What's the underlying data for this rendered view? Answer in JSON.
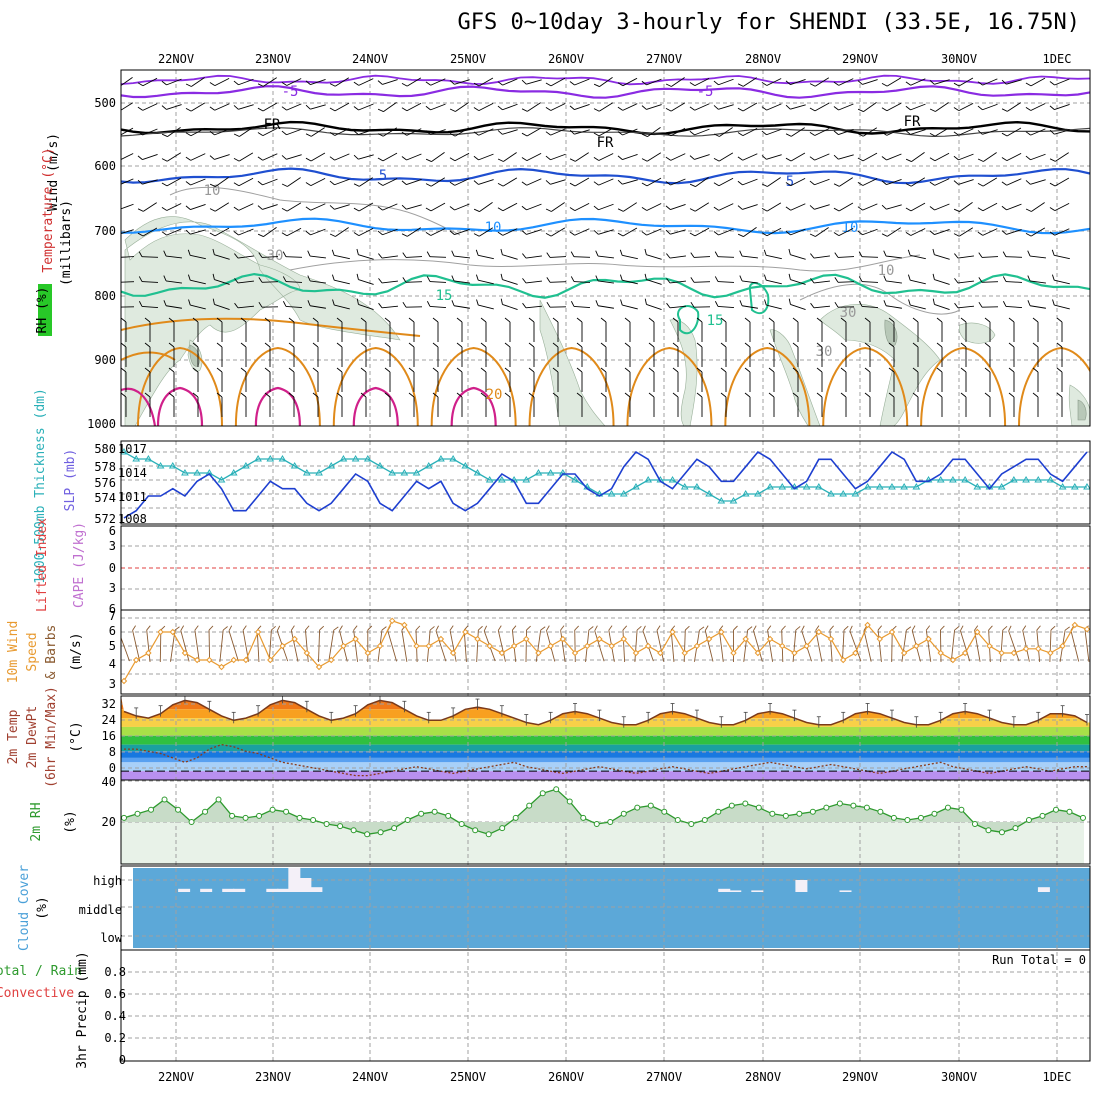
{
  "title": "GFS 0~10day 3-hourly for SHENDI (33.5E, 16.75N)",
  "dates": [
    "22NOV",
    "23NOV",
    "24NOV",
    "25NOV",
    "26NOV",
    "27NOV",
    "28NOV",
    "29NOV",
    "30NOV",
    "1DEC"
  ],
  "panels": {
    "upper": {
      "ylabel_wind": "Wind (m/s)",
      "ylabel_temp": "Temperature (°C)",
      "ylabel_rh": "RH (%)",
      "ylabel_units": "(millibars)",
      "ticks": [
        "500",
        "600",
        "700",
        "800",
        "900",
        "1000"
      ],
      "contour_labels": [
        "-5",
        "-5",
        "FR",
        "FR",
        "FR",
        "5",
        "5",
        "10",
        "10",
        "15",
        "15",
        "20",
        "10",
        "30",
        "10",
        "30",
        "30"
      ]
    },
    "thickness": {
      "ylabel_left": "1000-500mb Thickness (dm)",
      "ylabel_right": "SLP (mb)",
      "left_ticks": [
        "580",
        "578",
        "576",
        "574",
        "572"
      ],
      "right_ticks": [
        "1017",
        "1014",
        "1011",
        "1008"
      ]
    },
    "stability": {
      "ylabel_left": "Lifted Index",
      "ylabel_right": "CAPE (J/kg)",
      "ticks": [
        "6",
        "3",
        "0",
        "3",
        "6"
      ]
    },
    "wind10": {
      "ylabel_1": "10m Wind",
      "ylabel_2": "Speed",
      "ylabel_3": "& Barbs",
      "ylabel_units": "(m/s)",
      "ticks": [
        "7",
        "6",
        "5",
        "4",
        "3"
      ]
    },
    "temp2m": {
      "ylabel_1": "2m Temp",
      "ylabel_2": "2m DewPt",
      "ylabel_3": "(6hr Min/Max)",
      "ylabel_units": "(°C)",
      "ticks": [
        "32",
        "24",
        "16",
        "8",
        "0"
      ]
    },
    "rh2m": {
      "ylabel": "2m RH",
      "ylabel_units": "(%)",
      "ticks": [
        "40",
        "20"
      ]
    },
    "cloud": {
      "ylabel": "Cloud Cover",
      "ylabel_units": "(%)",
      "ticks": [
        "high",
        "middle",
        "low"
      ]
    },
    "precip": {
      "ylabel_1": "Total / Rain",
      "ylabel_2": "Convective",
      "ylabel_3": "3hr Precip (mm)",
      "ticks": [
        "0.8",
        "0.6",
        "0.4",
        "0.2",
        "0"
      ],
      "run_total": "Run Total = 0"
    }
  },
  "colors": {
    "rh_fill": "#dfeadf",
    "temp_neg5": "#8a2be2",
    "temp_fr": "#000000",
    "temp_5": "#1f4fd0",
    "temp_10": "#1e90ff",
    "temp_15": "#20c090",
    "temp_20": "#e08a1a",
    "temp_25": "#d0208a",
    "slp": "#1e3fd0",
    "thickness": "#2ab0b8",
    "wind_speed": "#e89a30",
    "rh2m": "#2e9a2e",
    "cloud_bg": "#5ca8d8",
    "cloud_fill": "#f4f0f8"
  },
  "chart_data": {
    "type": "meteogram",
    "x": [
      "22NOV",
      "23NOV",
      "24NOV",
      "25NOV",
      "26NOV",
      "27NOV",
      "28NOV",
      "29NOV",
      "30NOV",
      "1DEC"
    ],
    "slp_mb": [
      1008,
      1009,
      1011,
      1011,
      1012,
      1011,
      1013,
      1014,
      1012,
      1009,
      1009,
      1011,
      1013,
      1012,
      1012,
      1010,
      1009,
      1010,
      1012,
      1014,
      1013,
      1010,
      1009,
      1011,
      1013,
      1012,
      1013,
      1010,
      1009,
      1010,
      1012,
      1014,
      1013,
      1010,
      1010,
      1012,
      1014,
      1014,
      1012,
      1011,
      1012,
      1015,
      1017,
      1016,
      1013,
      1012,
      1014,
      1016,
      1015,
      1013,
      1013,
      1015,
      1017,
      1016,
      1014,
      1012,
      1013,
      1016,
      1016,
      1014,
      1012,
      1013,
      1015,
      1017,
      1016,
      1013,
      1013,
      1014,
      1016,
      1016,
      1014,
      1012,
      1014,
      1015,
      1016,
      1016,
      1014,
      1013,
      1015,
      1017
    ],
    "thickness_dm": [
      580,
      579,
      579,
      578,
      578,
      577,
      577,
      577,
      576,
      577,
      578,
      579,
      579,
      579,
      578,
      577,
      577,
      578,
      579,
      579,
      579,
      578,
      577,
      577,
      577,
      578,
      579,
      579,
      578,
      577,
      576,
      576,
      576,
      576,
      577,
      577,
      577,
      576,
      575,
      574,
      574,
      574,
      575,
      576,
      576,
      576,
      575,
      575,
      574,
      573,
      573,
      574,
      574,
      575,
      575,
      575,
      575,
      575,
      574,
      574,
      574,
      575,
      575,
      575,
      575,
      575,
      576,
      576,
      576,
      576,
      575,
      575,
      575,
      576,
      576,
      576,
      576,
      575,
      575,
      575
    ],
    "lifted_index": [],
    "cape_jkg": [],
    "wind10_speed_ms": [
      2.5,
      4,
      4.5,
      6,
      6,
      4.5,
      4,
      4,
      3.5,
      4,
      4,
      6,
      4,
      5,
      5.5,
      4.5,
      3.5,
      4,
      5,
      5.5,
      4.5,
      5,
      6.8,
      6.5,
      5,
      5,
      5.5,
      4.5,
      6,
      5.5,
      5,
      4.5,
      5,
      5.5,
      4.5,
      5,
      5.5,
      4.5,
      5,
      5.5,
      5,
      5.5,
      4.5,
      5,
      4.5,
      6,
      4.5,
      5,
      5.5,
      6,
      4.5,
      5.5,
      4.5,
      5.5,
      5,
      4.5,
      5,
      6,
      5.5,
      4,
      4.5,
      6.5,
      5.5,
      6,
      4.5,
      5,
      5.5,
      4.5,
      4,
      4.5,
      6,
      5,
      4.5,
      4.5,
      4.8,
      4.8,
      4.5,
      5,
      6.5,
      6.2
    ],
    "temp2m_c": [
      27,
      25,
      24,
      26,
      30,
      32,
      31,
      28,
      25,
      23,
      24,
      26,
      30,
      32,
      31,
      28,
      25,
      23,
      24,
      26,
      30,
      32,
      31,
      28,
      25,
      23,
      23,
      25,
      28,
      29,
      28,
      26,
      24,
      22,
      21,
      23,
      26,
      27,
      26,
      24,
      22,
      21,
      21,
      23,
      26,
      27,
      26,
      24,
      22,
      21,
      21,
      23,
      26,
      27,
      26,
      24,
      22,
      21,
      21,
      23,
      26,
      27,
      26,
      24,
      22,
      21,
      21,
      23,
      26,
      27,
      26,
      24,
      22,
      21,
      21,
      23,
      26,
      26,
      25,
      22
    ],
    "dewpt2m_c": [
      10,
      10,
      9,
      8,
      6,
      4,
      6,
      10,
      12,
      11,
      9,
      8,
      6,
      4,
      3,
      2,
      1,
      0,
      -1,
      -2,
      -2,
      -1,
      0,
      1,
      2,
      1,
      0,
      -1,
      0,
      1,
      2,
      3,
      4,
      2,
      1,
      0,
      -1,
      0,
      1,
      2,
      1,
      0,
      -1,
      0,
      1,
      2,
      1,
      0,
      -1,
      0,
      1,
      2,
      3,
      4,
      3,
      2,
      1,
      2,
      3,
      2,
      1,
      0,
      -1,
      0,
      1,
      2,
      3,
      4,
      2,
      1,
      0,
      -1,
      0,
      1,
      2,
      1,
      0,
      1,
      2,
      2
    ],
    "rh2m_pct": [
      22,
      24,
      26,
      31,
      26,
      20,
      25,
      31,
      23,
      22,
      23,
      26,
      25,
      22,
      21,
      19,
      18,
      16,
      14,
      15,
      17,
      21,
      24,
      25,
      23,
      19,
      16,
      14,
      17,
      22,
      28,
      34,
      36,
      30,
      22,
      19,
      20,
      24,
      27,
      28,
      25,
      21,
      19,
      21,
      25,
      28,
      29,
      27,
      24,
      23,
      24,
      25,
      27,
      29,
      28,
      27,
      25,
      22,
      21,
      22,
      24,
      27,
      26,
      19,
      16,
      15,
      17,
      21,
      23,
      26,
      25,
      22
    ],
    "cloud_high_pct": [
      0,
      0,
      0,
      0,
      0,
      8,
      0,
      8,
      0,
      8,
      8,
      0,
      0,
      8,
      8,
      60,
      35,
      12,
      0,
      0,
      0,
      0,
      0,
      0,
      0,
      0,
      0,
      0,
      0,
      0,
      0,
      0,
      0,
      0,
      0,
      0,
      0,
      0,
      0,
      0,
      0,
      0,
      0,
      0,
      0,
      0,
      0,
      0,
      0,
      0,
      0,
      0,
      0,
      0,
      8,
      4,
      0,
      4,
      0,
      0,
      0,
      30,
      0,
      0,
      0,
      4,
      0,
      0,
      0,
      0,
      0,
      0,
      0,
      0,
      0,
      0,
      0,
      0,
      0,
      0,
      0,
      0,
      0,
      12,
      0,
      0,
      0,
      0,
      0,
      0,
      0,
      0
    ],
    "precip_mm": [],
    "run_total": "Run Total = 0"
  }
}
